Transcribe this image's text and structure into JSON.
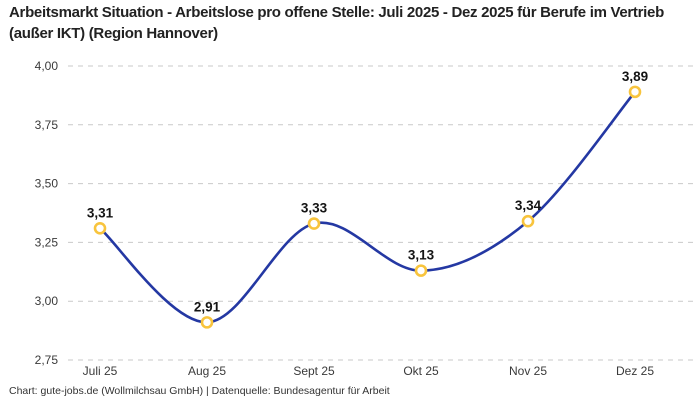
{
  "title": "Arbeitsmarkt Situation - Arbeitslose pro offene Stelle: Juli 2025 - Dez 2025 für Berufe im Vertrieb (außer IKT) (Region Hannover)",
  "footer": "Chart: gute-jobs.de (Wollmilchsau GmbH) | Datenquelle: Bundesagentur für Arbeit",
  "chart_data": {
    "type": "line",
    "title": "Arbeitsmarkt Situation - Arbeitslose pro offene Stelle: Juli 2025 - Dez 2025 für Berufe im Vertrieb (außer IKT) (Region Hannover)",
    "categories": [
      "Juli 25",
      "Aug 25",
      "Sept 25",
      "Okt 25",
      "Nov 25",
      "Dez 25"
    ],
    "values": [
      3.31,
      2.91,
      3.33,
      3.13,
      3.34,
      3.89
    ],
    "point_labels": [
      "3,31",
      "2,91",
      "3,33",
      "3,13",
      "3,34",
      "3,89"
    ],
    "xlabel": "",
    "ylabel": "",
    "ylim": [
      2.75,
      4.0
    ],
    "y_tick_values": [
      4.0,
      3.75,
      3.5,
      3.25,
      3.0,
      2.75
    ],
    "y_tick_labels": [
      "4,00",
      "3,75",
      "3,50",
      "3,25",
      "3,00",
      "2,75"
    ],
    "grid": "horizontal-dashed",
    "legend": "none",
    "curve": "smooth",
    "colors": {
      "line": "#2438a3",
      "marker_stroke": "#f8c43d",
      "marker_fill": "#ffffff",
      "grid": "#c9c9c9",
      "point_label": "#141414",
      "axis_text": "#3a3a3a"
    }
  }
}
